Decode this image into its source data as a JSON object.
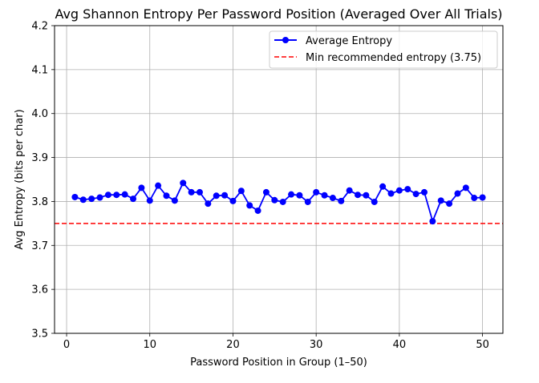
{
  "chart_data": {
    "type": "line",
    "title": "Avg Shannon Entropy Per Password Position (Averaged Over All Trials)",
    "xlabel": "Password Position in Group (1–50)",
    "ylabel": "Avg Entropy (bits per char)",
    "xlim": [
      -1.45,
      52.45
    ],
    "ylim": [
      3.5,
      4.2
    ],
    "xticks": [
      0,
      10,
      20,
      30,
      40,
      50
    ],
    "xtick_labels": [
      "0",
      "10",
      "20",
      "30",
      "40",
      "50"
    ],
    "yticks": [
      3.5,
      3.6,
      3.7,
      3.8,
      3.9,
      4.0,
      4.1,
      4.2
    ],
    "ytick_labels": [
      "3.5",
      "3.6",
      "3.7",
      "3.8",
      "3.9",
      "4.0",
      "4.1",
      "4.2"
    ],
    "grid": true,
    "legend_position": "top-right",
    "series": [
      {
        "name": "Average Entropy",
        "color": "#0000ff",
        "marker": "circle",
        "x": [
          1,
          2,
          3,
          4,
          5,
          6,
          7,
          8,
          9,
          10,
          11,
          12,
          13,
          14,
          15,
          16,
          17,
          18,
          19,
          20,
          21,
          22,
          23,
          24,
          25,
          26,
          27,
          28,
          29,
          30,
          31,
          32,
          33,
          34,
          35,
          36,
          37,
          38,
          39,
          40,
          41,
          42,
          43,
          44,
          45,
          46,
          47,
          48,
          49,
          50
        ],
        "values": [
          3.81,
          3.804,
          3.806,
          3.809,
          3.815,
          3.815,
          3.816,
          3.806,
          3.831,
          3.802,
          3.836,
          3.813,
          3.802,
          3.842,
          3.821,
          3.821,
          3.795,
          3.813,
          3.814,
          3.801,
          3.824,
          3.791,
          3.779,
          3.821,
          3.803,
          3.799,
          3.816,
          3.814,
          3.799,
          3.821,
          3.814,
          3.808,
          3.801,
          3.825,
          3.815,
          3.814,
          3.799,
          3.834,
          3.818,
          3.825,
          3.828,
          3.817,
          3.821,
          3.755,
          3.802,
          3.795,
          3.818,
          3.831,
          3.808,
          3.809
        ]
      }
    ],
    "reference_lines": [
      {
        "name": "Min recommended entropy (3.75)",
        "y": 3.75,
        "color": "#ff0000",
        "style": "dashed"
      }
    ]
  }
}
